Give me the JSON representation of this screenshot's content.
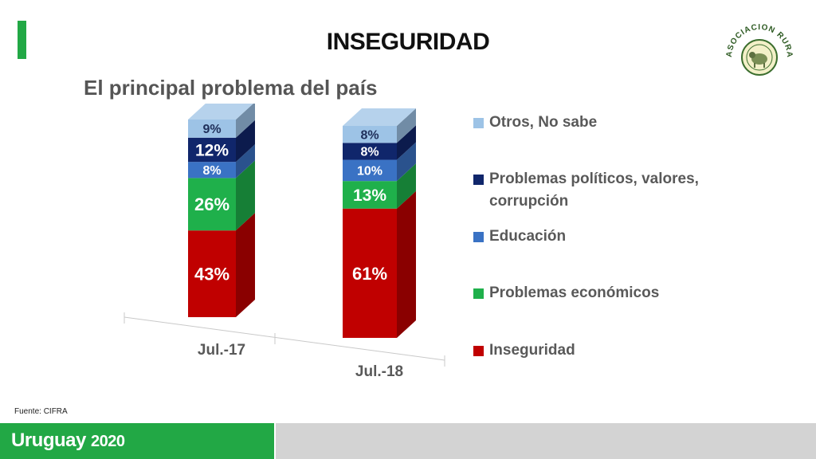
{
  "header": {
    "title": "INSEGURIDAD",
    "subtitle": "El principal problema del país"
  },
  "logo": {
    "text": "ASOCIACION RURAL · URUGUAY",
    "icon": "sheep-seal-icon"
  },
  "source": "Fuente: CIFRA",
  "footer": {
    "brand": "Uruguay",
    "year": "2020"
  },
  "colors": {
    "accent_green": "#22a845",
    "footer_gray": "#d3d3d3"
  },
  "chart_data": {
    "type": "bar",
    "stacked": true,
    "three_d": true,
    "categories": [
      "Jul.-17",
      "Jul.-18"
    ],
    "series": [
      {
        "name": "Inseguridad",
        "color": "#c00000",
        "values": [
          43,
          61
        ],
        "labels": [
          "43%",
          "61%"
        ]
      },
      {
        "name": "Problemas económicos",
        "color": "#1fb04b",
        "values": [
          26,
          13
        ],
        "labels": [
          "26%",
          "13%"
        ]
      },
      {
        "name": "Educación",
        "color": "#3a72c4",
        "values": [
          8,
          10
        ],
        "labels": [
          "8%",
          "10%"
        ]
      },
      {
        "name": "Problemas políticos, valores, corrupción",
        "color": "#10266b",
        "values": [
          12,
          8
        ],
        "labels": [
          "12%",
          "8%"
        ]
      },
      {
        "name": "Otros, No sabe",
        "color": "#9dc3e6",
        "values": [
          9,
          8
        ],
        "labels": [
          "9%",
          "8%"
        ]
      }
    ],
    "legend_position": "right",
    "ylim": [
      0,
      100
    ],
    "grid": false
  }
}
